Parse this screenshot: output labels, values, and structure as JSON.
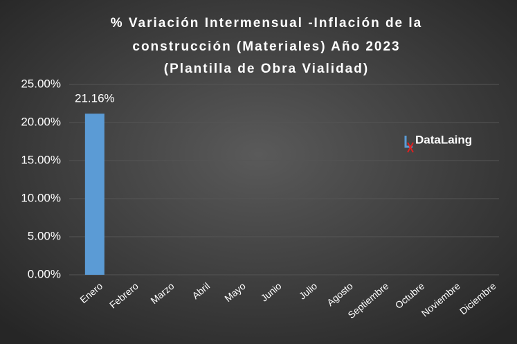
{
  "chart_data": {
    "type": "bar",
    "title": [
      "% Variación Intermensual -Inflación de la",
      "construcción (Materiales) Año 2023",
      "(Plantilla de Obra Vialidad)"
    ],
    "categories": [
      "Enero",
      "Febrero",
      "Marzo",
      "Abril",
      "Mayo",
      "Junio",
      "Julio",
      "Agosto",
      "Septiembre",
      "Octubre",
      "Noviembre",
      "Diciembre"
    ],
    "values": [
      21.16,
      null,
      null,
      null,
      null,
      null,
      null,
      null,
      null,
      null,
      null,
      null
    ],
    "value_labels": [
      "21.16%",
      null,
      null,
      null,
      null,
      null,
      null,
      null,
      null,
      null,
      null,
      null
    ],
    "color": "#5b9bd5",
    "ylim": [
      0,
      25
    ],
    "yticks": [
      {
        "value": 0,
        "label": "0.00%"
      },
      {
        "value": 5,
        "label": "5.00%"
      },
      {
        "value": 10,
        "label": "10.00%"
      },
      {
        "value": 15,
        "label": "15.00%"
      },
      {
        "value": 20,
        "label": "20.00%"
      },
      {
        "value": 25,
        "label": "25.00%"
      }
    ],
    "grid": true,
    "logo": "DataLaing"
  }
}
